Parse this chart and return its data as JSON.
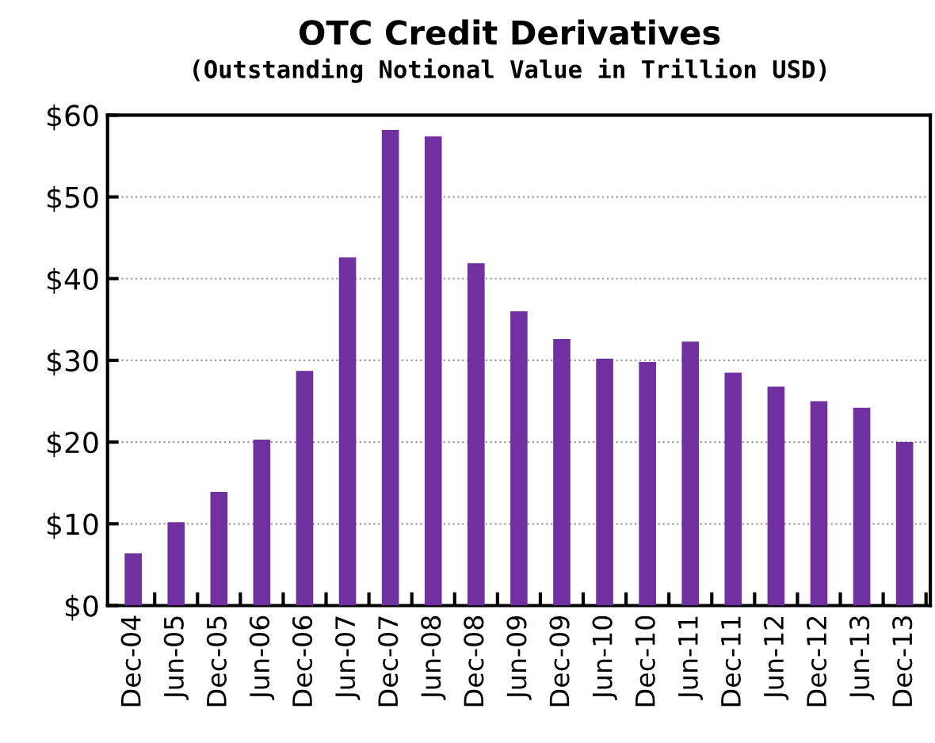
{
  "chart_data": {
    "type": "bar",
    "title": "OTC Credit Derivatives",
    "subtitle": "(Outstanding Notional Value in Trillion USD)",
    "categories": [
      "Dec-04",
      "Jun-05",
      "Dec-05",
      "Jun-06",
      "Dec-06",
      "Jun-07",
      "Dec-07",
      "Jun-08",
      "Dec-08",
      "Jun-09",
      "Dec-09",
      "Jun-10",
      "Dec-10",
      "Jun-11",
      "Dec-11",
      "Jun-12",
      "Dec-12",
      "Jun-13",
      "Dec-13"
    ],
    "values": [
      6.4,
      10.2,
      13.9,
      20.3,
      28.7,
      42.6,
      58.2,
      57.4,
      41.9,
      36.0,
      32.6,
      30.2,
      29.8,
      32.3,
      28.5,
      26.8,
      25.0,
      24.2,
      20.0
    ],
    "color": "#7030a0",
    "ylim": [
      0,
      60
    ],
    "yticks": [
      {
        "value": 0,
        "label": "$0"
      },
      {
        "value": 10,
        "label": "$10"
      },
      {
        "value": 20,
        "label": "$20"
      },
      {
        "value": 30,
        "label": "$30"
      },
      {
        "value": 40,
        "label": "$40"
      },
      {
        "value": 50,
        "label": "$50"
      },
      {
        "value": 60,
        "label": "$60"
      }
    ],
    "grid": "y"
  }
}
